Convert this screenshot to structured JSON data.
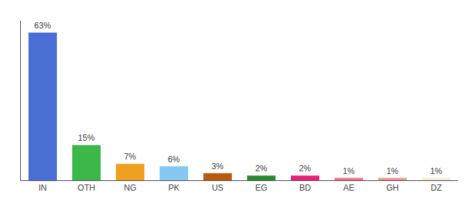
{
  "chart_data": {
    "type": "bar",
    "categories": [
      "IN",
      "OTH",
      "NG",
      "PK",
      "US",
      "EG",
      "BD",
      "AE",
      "GH",
      "DZ"
    ],
    "values": [
      63,
      15,
      7,
      6,
      3,
      2,
      2,
      1,
      1,
      1
    ],
    "value_labels": [
      "63%",
      "15%",
      "7%",
      "6%",
      "3%",
      "2%",
      "2%",
      "1%",
      "1%",
      "1%"
    ],
    "colors": [
      "#4a6fd4",
      "#3cb84a",
      "#f0a020",
      "#85c8f0",
      "#b85a10",
      "#2a8a30",
      "#e8207a",
      "#f07090",
      "#f09898",
      "#f0f0d8"
    ],
    "ylim": [
      0,
      68
    ],
    "data_labels": true,
    "tick_labels": "x",
    "grid": false
  }
}
